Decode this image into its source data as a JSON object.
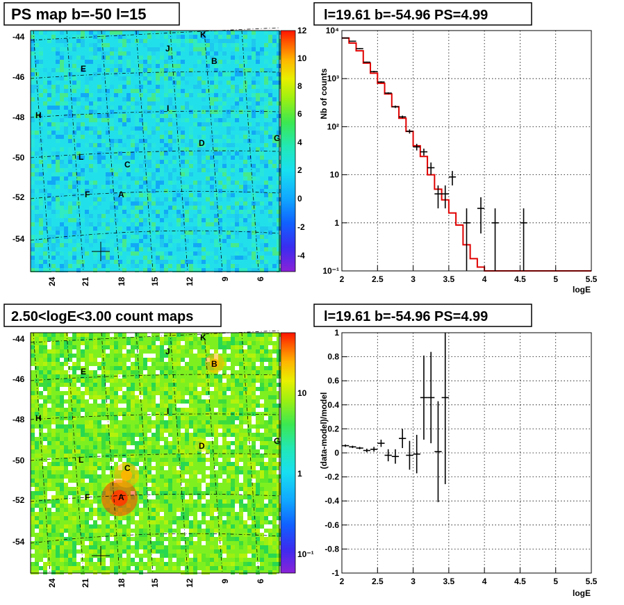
{
  "colors": {
    "model_line": "#e00000",
    "data_points": "#000000"
  },
  "maps": [
    {
      "title": "PS map b=-50 l=15",
      "lat_labels": [
        "-44",
        "-46",
        "-48",
        "-50",
        "-52",
        "-54"
      ],
      "lon_labels": [
        "24",
        "21",
        "18",
        "15",
        "12",
        "9",
        "6"
      ],
      "colorbar_labels": [
        "12",
        "10",
        "8",
        "6",
        "4",
        "2",
        "0",
        "-2",
        "-4"
      ],
      "colorbar_scale": "linear",
      "sources": [
        "K",
        "J",
        "B",
        "E",
        "H",
        "I",
        "D",
        "G",
        "L",
        "C",
        "F",
        "A"
      ]
    },
    {
      "title": "2.50<logE<3.00 count maps",
      "lat_labels": [
        "-44",
        "-46",
        "-48",
        "-50",
        "-52",
        "-54"
      ],
      "lon_labels": [
        "24",
        "21",
        "18",
        "15",
        "12",
        "9",
        "6"
      ],
      "colorbar_labels": [
        "10",
        "1",
        "10⁻¹"
      ],
      "colorbar_scale": "log",
      "sources": [
        "K",
        "J",
        "B",
        "E",
        "H",
        "I",
        "D",
        "G",
        "L",
        "C",
        "F",
        "A"
      ]
    }
  ],
  "chart_data": [
    {
      "type": "line",
      "title": "l=19.61 b=-54.96 PS=4.99",
      "xlabel": "logE",
      "ylabel": "Nb of counts",
      "xlim": [
        2,
        5.5
      ],
      "ylim": [
        0.1,
        10000
      ],
      "yscale": "log",
      "grid": true,
      "x_ticks": [
        "2",
        "2.5",
        "3",
        "3.5",
        "4",
        "4.5",
        "5",
        "5.5"
      ],
      "y_ticks": [
        "10⁻¹",
        "1",
        "10",
        "10²",
        "10³",
        "10⁴"
      ],
      "model_step": {
        "edges": [
          2.0,
          2.1,
          2.2,
          2.3,
          2.4,
          2.5,
          2.6,
          2.7,
          2.8,
          2.9,
          3.0,
          3.1,
          3.2,
          3.3,
          3.4,
          3.5,
          3.6,
          3.7,
          3.8,
          3.9,
          4.0,
          5.5
        ],
        "values": [
          7000,
          5500,
          3800,
          2100,
          1300,
          800,
          480,
          260,
          150,
          80,
          40,
          24,
          10,
          5,
          3,
          1.6,
          0.9,
          0.35,
          0.18,
          0.12,
          0.1
        ]
      },
      "data_points": [
        {
          "x": 2.05,
          "y": 7000,
          "yerr_lo": 6900,
          "yerr_hi": 7100
        },
        {
          "x": 2.15,
          "y": 6000,
          "yerr_lo": 5900,
          "yerr_hi": 6100
        },
        {
          "x": 2.25,
          "y": 4200,
          "yerr_lo": 4100,
          "yerr_hi": 4300
        },
        {
          "x": 2.35,
          "y": 2200,
          "yerr_lo": 2150,
          "yerr_hi": 2250
        },
        {
          "x": 2.45,
          "y": 1400,
          "yerr_lo": 1350,
          "yerr_hi": 1450
        },
        {
          "x": 2.55,
          "y": 850,
          "yerr_lo": 820,
          "yerr_hi": 880
        },
        {
          "x": 2.65,
          "y": 500,
          "yerr_lo": 480,
          "yerr_hi": 520
        },
        {
          "x": 2.75,
          "y": 260,
          "yerr_lo": 245,
          "yerr_hi": 275
        },
        {
          "x": 2.85,
          "y": 160,
          "yerr_lo": 150,
          "yerr_hi": 170
        },
        {
          "x": 2.95,
          "y": 80,
          "yerr_lo": 72,
          "yerr_hi": 88
        },
        {
          "x": 3.05,
          "y": 38,
          "yerr_lo": 32,
          "yerr_hi": 44
        },
        {
          "x": 3.15,
          "y": 30,
          "yerr_lo": 25,
          "yerr_hi": 35
        },
        {
          "x": 3.25,
          "y": 14,
          "yerr_lo": 10,
          "yerr_hi": 18
        },
        {
          "x": 3.35,
          "y": 4,
          "yerr_lo": 2,
          "yerr_hi": 6
        },
        {
          "x": 3.45,
          "y": 4,
          "yerr_lo": 2,
          "yerr_hi": 6
        },
        {
          "x": 3.55,
          "y": 9,
          "yerr_lo": 6,
          "yerr_hi": 12
        },
        {
          "x": 3.75,
          "y": 1,
          "yerr_lo": 0.1,
          "yerr_hi": 2
        },
        {
          "x": 3.95,
          "y": 2,
          "yerr_lo": 0.6,
          "yerr_hi": 3.4
        },
        {
          "x": 4.15,
          "y": 1,
          "yerr_lo": 0.1,
          "yerr_hi": 2
        },
        {
          "x": 4.55,
          "y": 1,
          "yerr_lo": 0.1,
          "yerr_hi": 2
        }
      ]
    },
    {
      "type": "scatter",
      "title": "l=19.61 b=-54.96 PS=4.99",
      "xlabel": "logE",
      "ylabel": "(data-model)/model",
      "xlim": [
        2,
        5.5
      ],
      "ylim": [
        -1,
        1
      ],
      "grid": true,
      "x_ticks": [
        "2",
        "2.5",
        "3",
        "3.5",
        "4",
        "4.5",
        "5",
        "5.5"
      ],
      "y_ticks": [
        "-1",
        "-0.8",
        "-0.6",
        "-0.4",
        "-0.2",
        "0",
        "0.2",
        "0.4",
        "0.6",
        "0.8",
        "1"
      ],
      "data_points": [
        {
          "x": 2.05,
          "y": 0.06,
          "yerr": 0.01
        },
        {
          "x": 2.15,
          "y": 0.05,
          "yerr": 0.01
        },
        {
          "x": 2.25,
          "y": 0.04,
          "yerr": 0.01
        },
        {
          "x": 2.35,
          "y": 0.02,
          "yerr": 0.015
        },
        {
          "x": 2.45,
          "y": 0.03,
          "yerr": 0.02
        },
        {
          "x": 2.55,
          "y": 0.08,
          "yerr": 0.03
        },
        {
          "x": 2.65,
          "y": -0.02,
          "yerr": 0.05
        },
        {
          "x": 2.75,
          "y": -0.03,
          "yerr": 0.06
        },
        {
          "x": 2.85,
          "y": 0.12,
          "yerr": 0.08
        },
        {
          "x": 2.95,
          "y": -0.02,
          "yerr": 0.12
        },
        {
          "x": 3.05,
          "y": -0.01,
          "yerr": 0.16
        },
        {
          "x": 3.15,
          "y": 0.46,
          "yerr": 0.35
        },
        {
          "x": 3.25,
          "y": 0.46,
          "yerr": 0.38
        },
        {
          "x": 3.35,
          "y": 0.01,
          "yerr": 0.42
        },
        {
          "x": 3.45,
          "y": 0.46,
          "yerr": 0.72
        }
      ]
    }
  ]
}
